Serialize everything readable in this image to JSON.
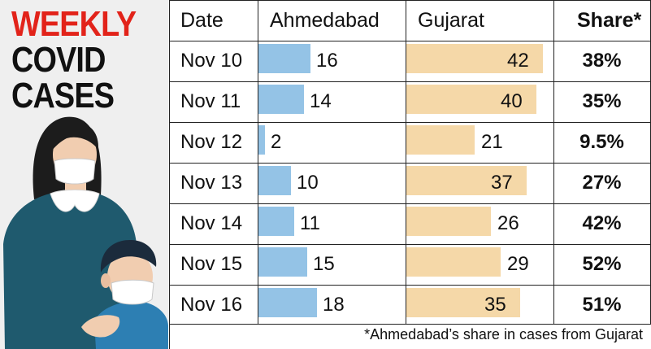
{
  "title": {
    "line1": "WEEKLY",
    "line2": "COVID",
    "line3": "CASES"
  },
  "colors": {
    "title_red": "#e2231a",
    "ahmedabad_bar": "#94c3e6",
    "gujarat_bar": "#f5d8a8"
  },
  "headers": {
    "date": "Date",
    "ahmedabad": "Ahmedabad",
    "gujarat": "Gujarat",
    "share": "Share*"
  },
  "chart_data": {
    "type": "bar",
    "categories": [
      "Nov 10",
      "Nov 11",
      "Nov 12",
      "Nov 13",
      "Nov 14",
      "Nov 15",
      "Nov 16"
    ],
    "series": [
      {
        "name": "Ahmedabad",
        "values": [
          16,
          14,
          2,
          10,
          11,
          15,
          18
        ]
      },
      {
        "name": "Gujarat",
        "values": [
          42,
          40,
          21,
          37,
          26,
          29,
          35
        ]
      }
    ],
    "share": [
      "38%",
      "35%",
      "9.5%",
      "27%",
      "42%",
      "52%",
      "51%"
    ],
    "title": "WEEKLY COVID CASES",
    "note": "*Ahmedabad’s share in cases from Gujarat"
  },
  "footnote": "*Ahmedabad’s share in cases from Gujarat"
}
